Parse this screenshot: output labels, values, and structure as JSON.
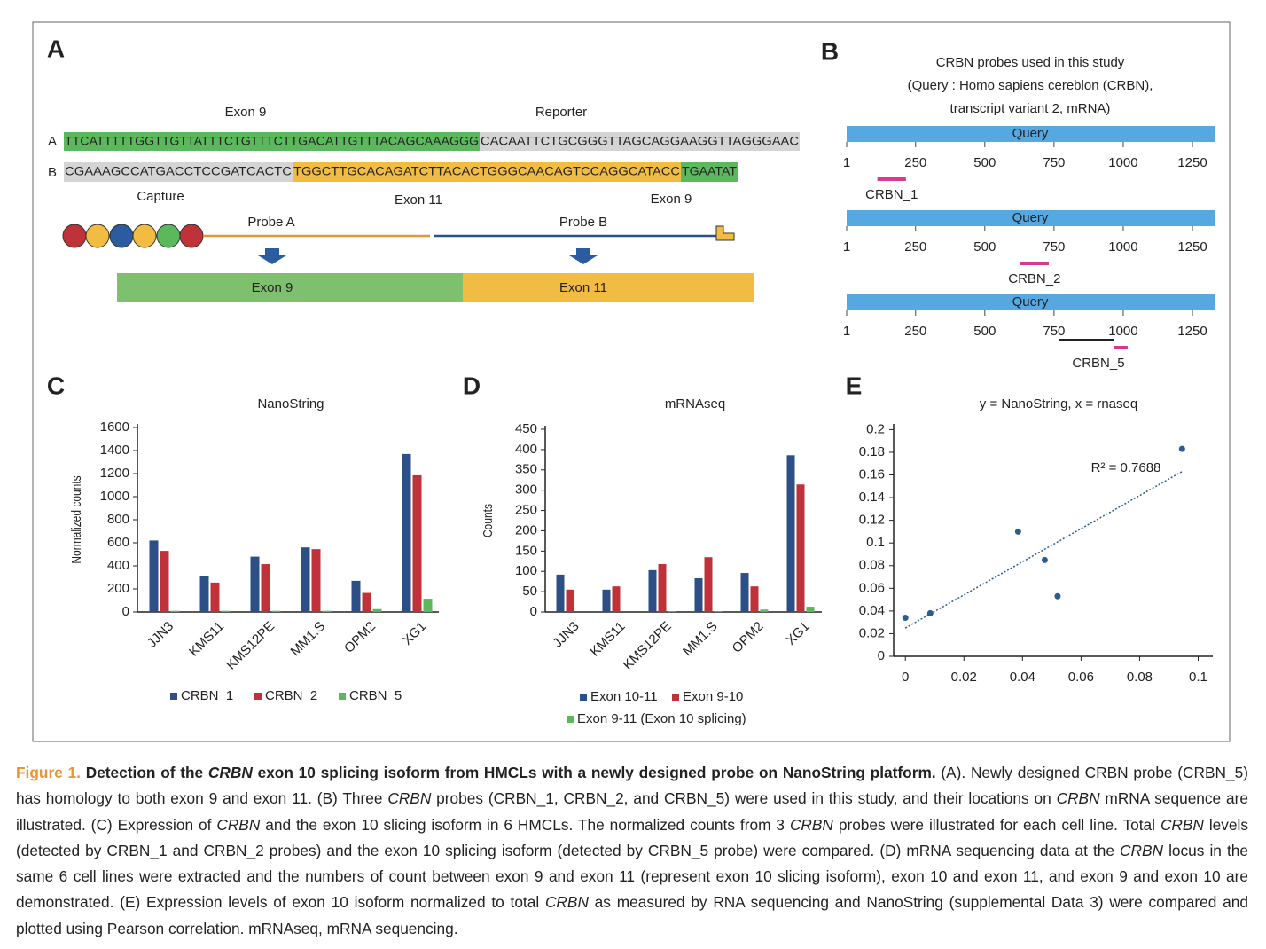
{
  "panel_labels": [
    "A",
    "B",
    "C",
    "D",
    "E"
  ],
  "panel_a": {
    "top_labels": [
      "Exon 9",
      "Reporter"
    ],
    "row_labels": [
      "A",
      "B"
    ],
    "row_a": [
      "TTCATTTTTGGTTGTTATTTCTGTTTCTTGACATTGTTTACAGCAAAGGG",
      "CACAATTCTGCGGGTTAGCAGGAAGGTTAGGGAAC"
    ],
    "row_b": [
      "CGAAAGCCATGACCTCCGATCACTC",
      "TGGCTTGCACAGATCTTACACTGGGCAACAGTCCAGGCATACC",
      "TGAATAT"
    ],
    "capture": "Capture",
    "mid_labels": [
      "Exon 11",
      "Exon 9"
    ],
    "probes": [
      "Probe A",
      "Probe B"
    ],
    "result": [
      "Exon 9",
      "Exon 11"
    ]
  },
  "panel_b": {
    "title": [
      "CRBN probes used in this study",
      "(Query : Homo sapiens cereblon (CRBN),",
      "transcript variant 2, mRNA)"
    ],
    "track_label": "Query",
    "xlim": [
      1,
      1330
    ],
    "xticks": [
      1,
      250,
      500,
      750,
      1000,
      1250
    ],
    "bar_color": "#55a8e0",
    "probe_color": "#d63a8f",
    "tracks": [
      {
        "probe": "CRBN_1",
        "start": 112,
        "end": 215
      },
      {
        "probe": "CRBN_2",
        "start": 628,
        "end": 731
      },
      {
        "probe": "CRBN_5",
        "start": 965,
        "end": 1016,
        "line_start": 769
      }
    ]
  },
  "chart_data": [
    {
      "type": "bar",
      "title": "NanoString",
      "y_label": "Normalized counts",
      "categories": [
        "JJN3",
        "KMS11",
        "KMS12PE",
        "MM1.S",
        "OPM2",
        "XG1"
      ],
      "series": [
        {
          "name": "CRBN_1",
          "color": "#2b4f86",
          "values": [
            620,
            310,
            480,
            560,
            270,
            1370
          ]
        },
        {
          "name": "CRBN_2",
          "color": "#c0323a",
          "values": [
            530,
            255,
            415,
            545,
            165,
            1185
          ]
        },
        {
          "name": "CRBN_5",
          "color": "#5cb85c",
          "values": [
            10,
            10,
            10,
            10,
            25,
            115
          ]
        }
      ],
      "ylim": [
        0,
        1600
      ],
      "yticks": [
        0,
        200,
        400,
        600,
        800,
        1000,
        1200,
        1400,
        1600
      ]
    },
    {
      "type": "bar",
      "title": "mRNAseq",
      "y_label": "Counts",
      "categories": [
        "JJN3",
        "KMS11",
        "KMS12PE",
        "MM1.S",
        "OPM2",
        "XG1"
      ],
      "series": [
        {
          "name": "Exon 10-11",
          "color": "#2b4f86",
          "values": [
            92,
            55,
            103,
            83,
            96,
            386
          ]
        },
        {
          "name": "Exon 9-10",
          "color": "#c0323a",
          "values": [
            55,
            63,
            118,
            135,
            63,
            314
          ]
        },
        {
          "name": "Exon 9-11 (Exon 10 splicing)",
          "color": "#5cb85c",
          "values": [
            0,
            0,
            2,
            1,
            6,
            13
          ]
        }
      ],
      "ylim": [
        0,
        450
      ],
      "yticks": [
        0,
        50,
        100,
        150,
        200,
        250,
        300,
        350,
        400,
        450
      ]
    },
    {
      "type": "scatter",
      "title": "y = NanoString, x = rnaseq",
      "annotation": "R² = 0.7688",
      "color": "#2b5c8f",
      "x": [
        0,
        0.0085,
        0.0385,
        0.0476,
        0.052,
        0.0945
      ],
      "values": [
        0.034,
        0.038,
        0.11,
        0.085,
        0.053,
        0.183
      ],
      "trendline": {
        "x": [
          0,
          0.0945
        ],
        "y": [
          0.025,
          0.163
        ]
      },
      "xlim": [
        -0.004,
        0.105
      ],
      "xticks": [
        0,
        0.02,
        0.04,
        0.06,
        0.08,
        0.1
      ],
      "ylim": [
        0,
        0.205
      ],
      "yticks": [
        0,
        0.02,
        0.04,
        0.06,
        0.08,
        0.1,
        0.12,
        0.14,
        0.16,
        0.18,
        0.2
      ]
    }
  ],
  "caption": [
    {
      "text": "Figure 1.",
      "style": "o"
    },
    {
      "text": " Detection of the ",
      "style": "b"
    },
    {
      "text": "CRBN",
      "style": "bi"
    },
    {
      "text": " exon 10 splicing isoform from HMCLs with a newly designed probe on NanoString platform.",
      "style": "b"
    },
    {
      "text": " (A). Newly designed CRBN probe (CRBN_5) has homology to both exon 9 and exon 11. (B) Three ",
      "style": "p"
    },
    {
      "text": "CRBN",
      "style": "i"
    },
    {
      "text": " probes (CRBN_1, CRBN_2, and CRBN_5) were used in this study, and their locations on ",
      "style": "p"
    },
    {
      "text": "CRBN",
      "style": "i"
    },
    {
      "text": " mRNA sequence are illustrated. (C) Expression of ",
      "style": "p"
    },
    {
      "text": "CRBN",
      "style": "i"
    },
    {
      "text": " and the exon 10 slicing isoform in 6 HMCLs. The normalized counts from 3 ",
      "style": "p"
    },
    {
      "text": "CRBN",
      "style": "i"
    },
    {
      "text": " probes were illustrated for each cell line. Total ",
      "style": "p"
    },
    {
      "text": "CRBN",
      "style": "i"
    },
    {
      "text": " levels (detected by CRBN_1 and CRBN_2 probes) and the exon 10 splicing isoform (detected by CRBN_5 probe) were compared. (D) mRNA sequencing data at the ",
      "style": "p"
    },
    {
      "text": "CRBN",
      "style": "i"
    },
    {
      "text": " locus in the same 6 cell lines were extracted and the numbers of count between exon 9 and exon 11 (represent exon 10 slicing isoform), exon 10 and exon 11, and exon 9 and exon 10 are demonstrated. (E) Expression levels of exon 10 isoform normalized to total ",
      "style": "p"
    },
    {
      "text": "CRBN",
      "style": "i"
    },
    {
      "text": " as measured by RNA sequencing and NanoString (supplemental Data 3) were compared and plotted using Pearson correlation. mRNAseq, mRNA sequencing.",
      "style": "p"
    }
  ]
}
